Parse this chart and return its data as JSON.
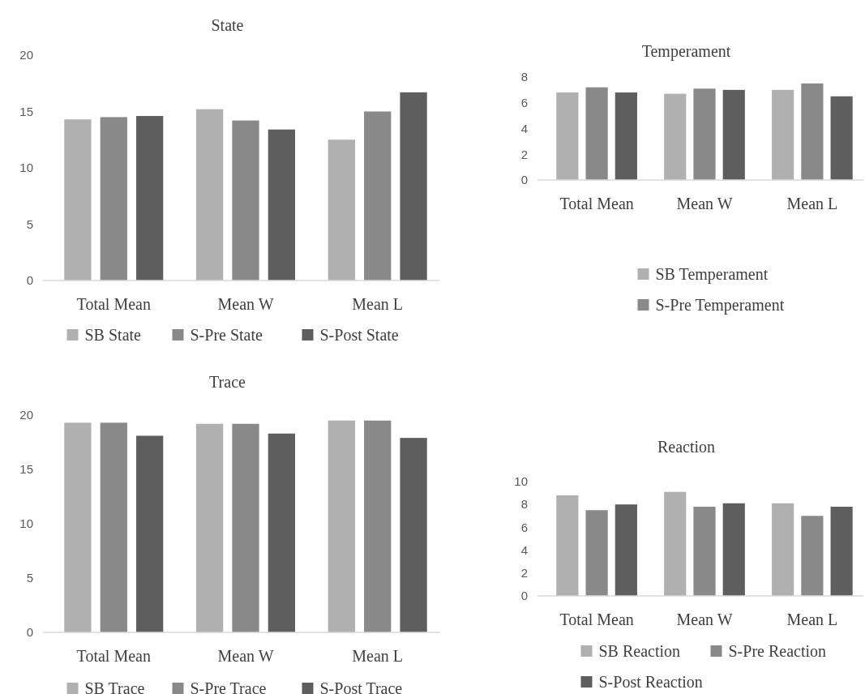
{
  "chart_data": [
    {
      "type": "bar",
      "title": "State",
      "categories": [
        "Total Mean",
        "Mean W",
        "Mean L"
      ],
      "ylim": [
        0,
        20
      ],
      "yticks": [
        0,
        5,
        10,
        15,
        20
      ],
      "legend": "bottom",
      "series": [
        {
          "name": "SB State",
          "color": "#b0b0b0",
          "values": [
            14.3,
            15.2,
            12.5
          ]
        },
        {
          "name": "S-Pre State",
          "color": "#898989",
          "values": [
            14.5,
            14.2,
            15.0
          ]
        },
        {
          "name": "S-Post State",
          "color": "#5e5e5e",
          "values": [
            14.6,
            13.4,
            16.7
          ]
        }
      ]
    },
    {
      "type": "bar",
      "title": "Temperament",
      "categories": [
        "Total Mean",
        "Mean W",
        "Mean L"
      ],
      "ylim": [
        0,
        8
      ],
      "yticks": [
        0,
        2,
        4,
        6,
        8
      ],
      "legend": "bottom",
      "series": [
        {
          "name": "SB Temperament",
          "color": "#b0b0b0",
          "values": [
            6.8,
            6.7,
            7.0
          ]
        },
        {
          "name": "S-Pre Temperament",
          "color": "#898989",
          "values": [
            7.2,
            7.1,
            7.5
          ]
        },
        {
          "color": "#5e5e5e",
          "values": [
            6.8,
            7.0,
            6.5
          ]
        }
      ]
    },
    {
      "type": "bar",
      "title": "Trace",
      "categories": [
        "Total Mean",
        "Mean W",
        "Mean L"
      ],
      "ylim": [
        0,
        20
      ],
      "yticks": [
        0,
        5,
        10,
        15,
        20
      ],
      "legend": "bottom",
      "series": [
        {
          "name": "SB Trace",
          "color": "#b0b0b0",
          "values": [
            19.3,
            19.2,
            19.5
          ]
        },
        {
          "name": "S-Pre Trace",
          "color": "#898989",
          "values": [
            19.3,
            19.2,
            19.5
          ]
        },
        {
          "name": "S-Post Trace",
          "color": "#5e5e5e",
          "values": [
            18.1,
            18.3,
            17.9
          ]
        }
      ]
    },
    {
      "type": "bar",
      "title": "Reaction",
      "categories": [
        "Total Mean",
        "Mean W",
        "Mean L"
      ],
      "ylim": [
        0,
        10
      ],
      "yticks": [
        0,
        2,
        4,
        6,
        8,
        10
      ],
      "legend": "bottom",
      "series": [
        {
          "name": "SB Reaction",
          "color": "#b0b0b0",
          "values": [
            8.8,
            9.1,
            8.1
          ]
        },
        {
          "name": "S-Pre Reaction",
          "color": "#898989",
          "values": [
            7.5,
            7.8,
            7.0
          ]
        },
        {
          "name": "S-Post Reaction",
          "color": "#5e5e5e",
          "values": [
            8.0,
            8.1,
            7.8
          ]
        }
      ]
    }
  ]
}
